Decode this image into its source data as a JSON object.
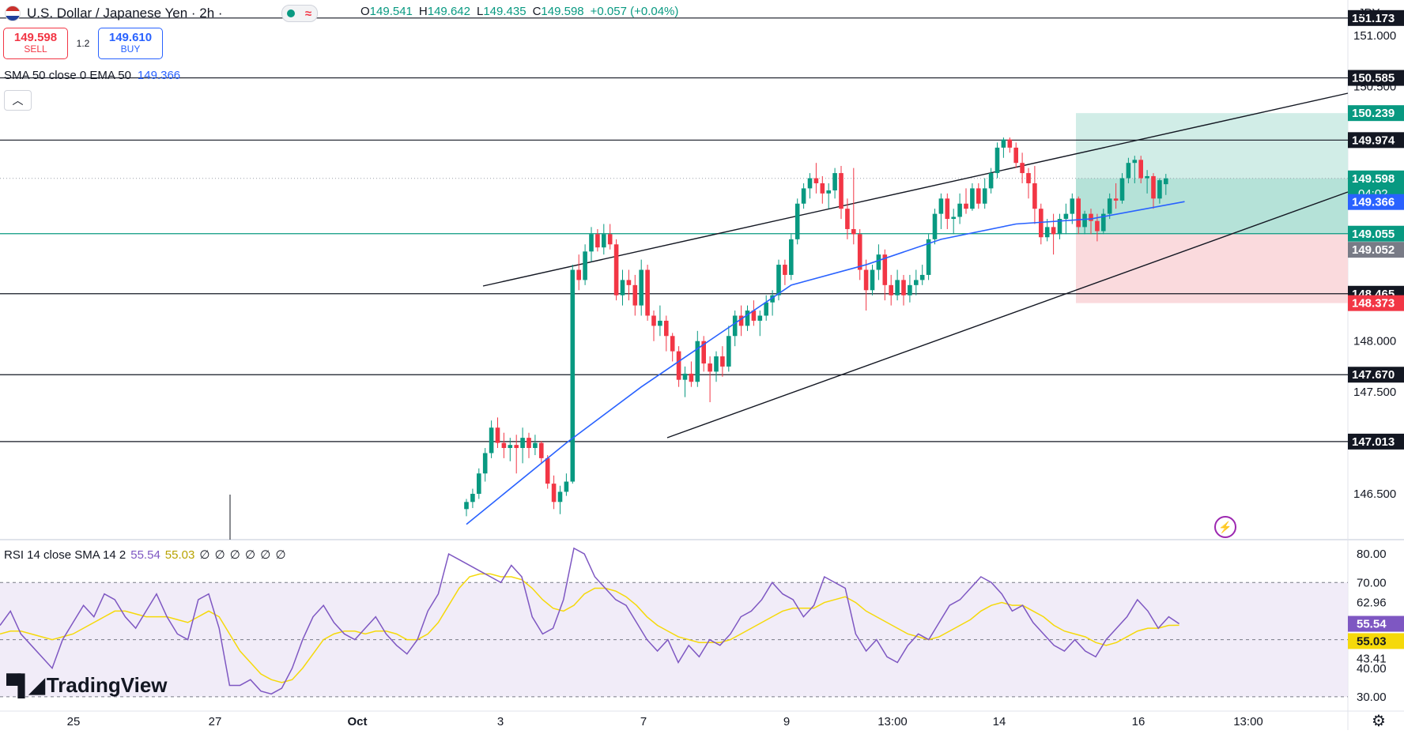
{
  "header": {
    "pair_title": "U.S. Dollar / Japanese Yen · 2h ·",
    "ohlc": {
      "o_label": "O",
      "o": "149.541",
      "h_label": "H",
      "h": "149.642",
      "l_label": "L",
      "l": "149.435",
      "c_label": "C",
      "c": "149.598",
      "change": "+0.057 (+0.04%)"
    },
    "currency": "JPY"
  },
  "trade": {
    "sell_price": "149.598",
    "sell_label": "SELL",
    "spread": "1.2",
    "buy_price": "149.610",
    "buy_label": "BUY"
  },
  "indicator_label": {
    "name": "SMA 50 close 0 EMA 50",
    "value": "149.366"
  },
  "rsi_label": {
    "name": "RSI 14 close SMA 14 2",
    "rsi": "55.54",
    "sma": "55.03",
    "extra": "∅ ∅ ∅ ∅ ∅ ∅"
  },
  "brand": "TradingView",
  "colors": {
    "up": "#089981",
    "down": "#f23645",
    "sma": "#2962ff",
    "rsi": "#7e57c2",
    "rsi_ma": "#f5d90a",
    "long_profit": "#d1ede7",
    "long_stop": "#fadadd",
    "level": "#131722"
  },
  "icons": [
    "usd-flag-icon",
    "market-status-icon",
    "collapse-chevron-icon",
    "lightning-icon",
    "tradingview-logo-icon",
    "gear-icon"
  ],
  "chart_data": [
    {
      "type": "candlestick",
      "title": "U.S. Dollar / Japanese Yen · 2h",
      "ylim": [
        146.05,
        151.35
      ],
      "x_tick_labels": [
        "25",
        "27",
        "Oct",
        "3",
        "7",
        "9",
        "13:00",
        "14",
        "16",
        "13:00"
      ],
      "price_axis_ticks": [
        "151.000",
        "150.500",
        "148.000",
        "147.500",
        "146.500"
      ],
      "horizontal_levels": [
        151.173,
        150.585,
        149.974,
        148.465,
        147.67,
        147.013
      ],
      "level_labels": [
        "151.173",
        "150.585",
        "149.974",
        "148.465",
        "147.670",
        "147.013"
      ],
      "badges": [
        {
          "text": "150.239",
          "kind": "target",
          "price": 150.239
        },
        {
          "text": "149.598",
          "sub": "04:02",
          "kind": "last",
          "price": 149.598
        },
        {
          "text": "149.366",
          "kind": "sma",
          "price": 149.366
        },
        {
          "text": "149.055",
          "kind": "entry",
          "price": 149.055
        },
        {
          "text": "149.052",
          "kind": "gray",
          "price": 149.052
        },
        {
          "text": "148.373",
          "kind": "stop",
          "price": 148.373
        }
      ],
      "long_position": {
        "entry": 149.055,
        "target": 150.239,
        "stop": 148.373
      },
      "channel": [
        {
          "from": [
            1,
            149.34
          ],
          "to": [
            1,
            151.05
          ]
        },
        {
          "from": [
            1,
            147.14
          ],
          "to": [
            1,
            149.97
          ]
        }
      ],
      "candles": [
        [
          146.35,
          146.45,
          146.28,
          146.42
        ],
        [
          146.42,
          146.55,
          146.36,
          146.5
        ],
        [
          146.5,
          146.75,
          146.45,
          146.7
        ],
        [
          146.7,
          146.95,
          146.62,
          146.9
        ],
        [
          146.9,
          147.22,
          146.85,
          147.15
        ],
        [
          147.15,
          147.25,
          146.95,
          147.0
        ],
        [
          147.0,
          147.1,
          146.85,
          146.95
        ],
        [
          146.95,
          147.05,
          146.82,
          146.98
        ],
        [
          146.98,
          147.08,
          146.7,
          146.95
        ],
        [
          146.95,
          147.15,
          146.8,
          147.05
        ],
        [
          147.05,
          147.1,
          146.85,
          146.95
        ],
        [
          146.95,
          147.08,
          146.88,
          147.0
        ],
        [
          147.0,
          147.02,
          146.8,
          146.85
        ],
        [
          146.85,
          146.88,
          146.55,
          146.6
        ],
        [
          146.6,
          146.68,
          146.35,
          146.42
        ],
        [
          146.42,
          146.58,
          146.3,
          146.52
        ],
        [
          146.52,
          146.7,
          146.48,
          146.62
        ],
        [
          146.62,
          148.75,
          146.6,
          148.7
        ],
        [
          148.7,
          148.85,
          148.5,
          148.6
        ],
        [
          148.6,
          148.95,
          148.55,
          148.88
        ],
        [
          148.88,
          149.12,
          148.78,
          149.05
        ],
        [
          149.05,
          149.1,
          148.88,
          148.92
        ],
        [
          148.92,
          149.15,
          148.85,
          149.05
        ],
        [
          149.05,
          149.15,
          148.9,
          148.95
        ],
        [
          148.95,
          149.0,
          148.4,
          148.45
        ],
        [
          148.45,
          148.7,
          148.35,
          148.6
        ],
        [
          148.6,
          148.7,
          148.4,
          148.55
        ],
        [
          148.55,
          148.65,
          148.25,
          148.35
        ],
        [
          148.35,
          148.8,
          148.25,
          148.7
        ],
        [
          148.7,
          148.75,
          148.2,
          148.25
        ],
        [
          148.25,
          148.3,
          148.0,
          148.15
        ],
        [
          148.15,
          148.35,
          148.05,
          148.2
        ],
        [
          148.2,
          148.25,
          147.9,
          148.05
        ],
        [
          148.05,
          148.08,
          147.8,
          147.9
        ],
        [
          147.9,
          147.95,
          147.55,
          147.62
        ],
        [
          147.62,
          147.75,
          147.45,
          147.68
        ],
        [
          147.68,
          147.8,
          147.55,
          147.6
        ],
        [
          147.6,
          148.1,
          147.55,
          148.0
        ],
        [
          148.0,
          148.05,
          147.7,
          147.78
        ],
        [
          147.78,
          147.85,
          147.4,
          147.7
        ],
        [
          147.7,
          147.9,
          147.6,
          147.85
        ],
        [
          147.85,
          147.95,
          147.65,
          147.75
        ],
        [
          147.75,
          148.15,
          147.7,
          148.05
        ],
        [
          148.05,
          148.3,
          147.95,
          148.25
        ],
        [
          148.25,
          148.35,
          148.05,
          148.15
        ],
        [
          148.15,
          148.35,
          148.1,
          148.3
        ],
        [
          148.3,
          148.4,
          148.15,
          148.2
        ],
        [
          148.2,
          148.3,
          148.05,
          148.25
        ],
        [
          148.25,
          148.45,
          148.2,
          148.38
        ],
        [
          148.38,
          148.5,
          148.25,
          148.45
        ],
        [
          148.45,
          148.8,
          148.4,
          148.75
        ],
        [
          148.75,
          148.8,
          148.55,
          148.65
        ],
        [
          148.65,
          149.05,
          148.6,
          149.0
        ],
        [
          149.0,
          149.4,
          148.95,
          149.35
        ],
        [
          149.35,
          149.55,
          149.3,
          149.5
        ],
        [
          149.5,
          149.65,
          149.4,
          149.6
        ],
        [
          149.6,
          149.75,
          149.45,
          149.55
        ],
        [
          149.55,
          149.62,
          149.35,
          149.45
        ],
        [
          149.45,
          149.55,
          149.3,
          149.48
        ],
        [
          149.48,
          149.7,
          149.4,
          149.65
        ],
        [
          149.65,
          149.72,
          149.2,
          149.3
        ],
        [
          149.3,
          149.4,
          149.0,
          149.1
        ],
        [
          149.1,
          149.7,
          148.95,
          149.05
        ],
        [
          149.05,
          149.1,
          148.6,
          148.7
        ],
        [
          148.7,
          148.8,
          148.3,
          148.5
        ],
        [
          148.5,
          148.75,
          148.45,
          148.7
        ],
        [
          148.7,
          148.95,
          148.6,
          148.85
        ],
        [
          148.85,
          148.9,
          148.4,
          148.55
        ],
        [
          148.55,
          148.65,
          148.35,
          148.45
        ],
        [
          148.45,
          148.7,
          148.4,
          148.6
        ],
        [
          148.6,
          148.65,
          148.35,
          148.45
        ],
        [
          148.45,
          148.65,
          148.38,
          148.55
        ],
        [
          148.55,
          148.7,
          148.45,
          148.6
        ],
        [
          148.6,
          148.75,
          148.55,
          148.65
        ],
        [
          148.65,
          149.05,
          148.6,
          149.0
        ],
        [
          149.0,
          149.3,
          148.95,
          149.25
        ],
        [
          149.25,
          149.45,
          149.1,
          149.4
        ],
        [
          149.4,
          149.45,
          149.1,
          149.2
        ],
        [
          149.2,
          149.3,
          149.05,
          149.22
        ],
        [
          149.22,
          149.45,
          149.15,
          149.35
        ],
        [
          149.35,
          149.5,
          149.25,
          149.3
        ],
        [
          149.3,
          149.55,
          149.28,
          149.5
        ],
        [
          149.5,
          149.55,
          149.3,
          149.35
        ],
        [
          149.35,
          149.6,
          149.3,
          149.5
        ],
        [
          149.5,
          149.7,
          149.45,
          149.65
        ],
        [
          149.65,
          149.95,
          149.6,
          149.9
        ],
        [
          149.9,
          150.0,
          149.8,
          149.98
        ],
        [
          149.98,
          150.0,
          149.85,
          149.9
        ],
        [
          149.9,
          149.95,
          149.7,
          149.75
        ],
        [
          149.75,
          149.85,
          149.55,
          149.65
        ],
        [
          149.65,
          149.7,
          149.4,
          149.55
        ],
        [
          149.55,
          149.72,
          149.15,
          149.3
        ],
        [
          149.3,
          149.35,
          148.95,
          149.02
        ],
        [
          149.02,
          149.2,
          148.98,
          149.12
        ],
        [
          149.12,
          149.25,
          148.85,
          149.05
        ],
        [
          149.05,
          149.25,
          149.0,
          149.2
        ],
        [
          149.2,
          149.35,
          149.05,
          149.25
        ],
        [
          149.25,
          149.45,
          149.15,
          149.4
        ],
        [
          149.4,
          149.42,
          149.05,
          149.12
        ],
        [
          149.12,
          149.28,
          149.05,
          149.25
        ],
        [
          149.25,
          149.3,
          149.05,
          149.18
        ],
        [
          149.18,
          149.25,
          148.98,
          149.08
        ],
        [
          149.08,
          149.3,
          149.05,
          149.25
        ],
        [
          149.25,
          149.45,
          149.2,
          149.4
        ],
        [
          149.4,
          149.55,
          149.3,
          149.38
        ],
        [
          149.38,
          149.65,
          149.35,
          149.6
        ],
        [
          149.6,
          149.8,
          149.55,
          149.75
        ],
        [
          149.75,
          149.82,
          149.55,
          149.78
        ],
        [
          149.78,
          149.82,
          149.55,
          149.6
        ],
        [
          149.6,
          149.68,
          149.45,
          149.62
        ],
        [
          149.62,
          149.65,
          149.3,
          149.4
        ],
        [
          149.4,
          149.6,
          149.35,
          149.58
        ],
        [
          149.541,
          149.642,
          149.435,
          149.598
        ]
      ],
      "sma50": [
        [
          0,
          146.2
        ],
        [
          16,
          147.0
        ],
        [
          28,
          147.55
        ],
        [
          40,
          148.05
        ],
        [
          52,
          148.55
        ],
        [
          64,
          148.75
        ],
        [
          76,
          149.0
        ],
        [
          88,
          149.15
        ],
        [
          100,
          149.2
        ],
        [
          115,
          149.37
        ]
      ]
    },
    {
      "type": "line",
      "title": "RSI 14 close SMA 14 2",
      "ylim": [
        25,
        85
      ],
      "y_ticks": [
        "80.00",
        "70.00",
        "62.96",
        "43.41",
        "40.00",
        "30.00"
      ],
      "bands": [
        70,
        50,
        30
      ],
      "series": [
        {
          "name": "RSI",
          "values": [
            55,
            60,
            52,
            48,
            44,
            40,
            50,
            56,
            62,
            58,
            66,
            64,
            58,
            54,
            60,
            66,
            58,
            52,
            50,
            64,
            66,
            54,
            34,
            34,
            36,
            32,
            31,
            33,
            40,
            50,
            58,
            62,
            56,
            52,
            50,
            54,
            58,
            52,
            48,
            45,
            50,
            60,
            66,
            80,
            78,
            76,
            74,
            72,
            70,
            76,
            72,
            58,
            52,
            54,
            64,
            82,
            80,
            72,
            68,
            64,
            62,
            56,
            50,
            46,
            50,
            42,
            48,
            44,
            50,
            48,
            52,
            58,
            60,
            64,
            70,
            66,
            64,
            58,
            62,
            72,
            70,
            68,
            52,
            46,
            50,
            44,
            42,
            48,
            52,
            50,
            56,
            62,
            64,
            68,
            72,
            70,
            66,
            60,
            62,
            56,
            52,
            48,
            46,
            50,
            46,
            44,
            50,
            54,
            58,
            64,
            60,
            54,
            58,
            55.54
          ]
        },
        {
          "name": "SMA",
          "values": [
            52,
            53,
            53,
            52,
            51,
            50,
            51,
            52,
            54,
            56,
            58,
            60,
            60,
            59,
            58,
            58,
            58,
            57,
            56,
            58,
            60,
            58,
            52,
            46,
            42,
            38,
            36,
            35,
            36,
            40,
            45,
            50,
            52,
            53,
            53,
            52,
            53,
            53,
            52,
            50,
            50,
            52,
            56,
            62,
            68,
            72,
            73,
            73,
            72,
            72,
            71,
            68,
            64,
            61,
            60,
            62,
            66,
            68,
            68,
            67,
            65,
            62,
            58,
            55,
            53,
            51,
            50,
            49,
            49,
            49,
            50,
            52,
            54,
            56,
            58,
            60,
            61,
            61,
            61,
            63,
            64,
            65,
            63,
            60,
            58,
            56,
            54,
            52,
            51,
            50,
            51,
            53,
            55,
            57,
            60,
            62,
            63,
            62,
            62,
            60,
            58,
            55,
            53,
            52,
            51,
            49,
            48,
            49,
            51,
            53,
            54,
            54,
            55,
            55.03
          ]
        }
      ]
    }
  ]
}
